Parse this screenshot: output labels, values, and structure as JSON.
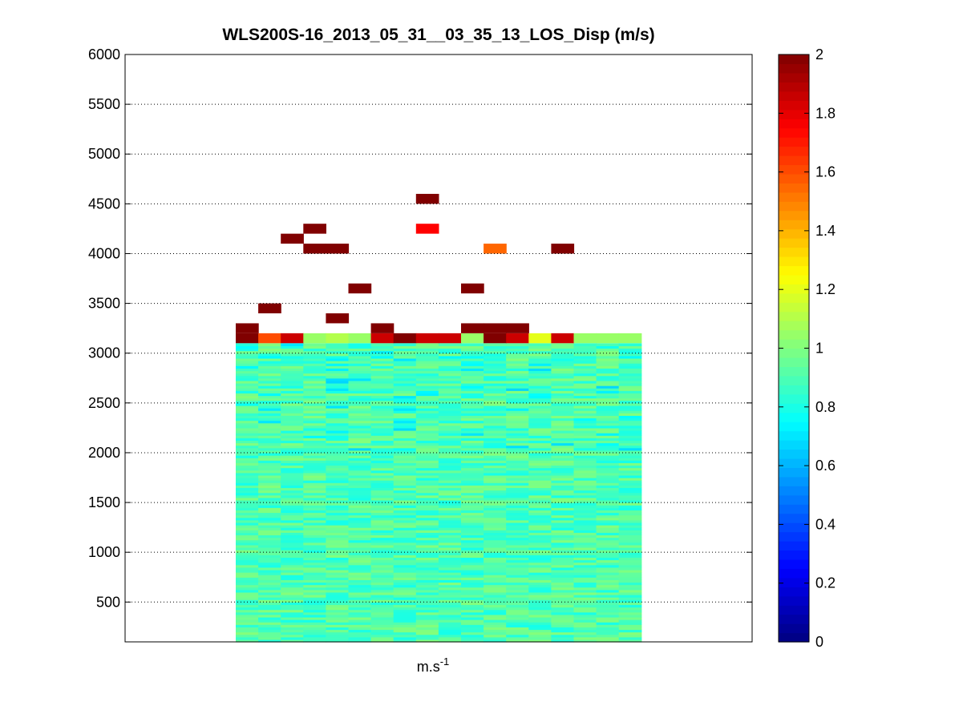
{
  "chart_data": {
    "type": "heatmap",
    "title": "WLS200S-16_2013_05_31__03_35_13_LOS_Disp (m/s)",
    "xlabel_base": "m.s",
    "xlabel_sup": "-1",
    "ylabel": "",
    "ylim": [
      100,
      6000
    ],
    "yticks": [
      500,
      1000,
      1500,
      2000,
      2500,
      3000,
      3500,
      4000,
      4500,
      5000,
      5500,
      6000
    ],
    "grid": "horizontal dotted",
    "colormap": "jet",
    "clim": [
      0,
      2
    ],
    "colorbar_ticks": [
      0,
      0.2,
      0.4,
      0.6,
      0.8,
      1,
      1.2,
      1.4,
      1.6,
      1.8,
      2
    ],
    "column_count": 18,
    "base_band": {
      "altitude_range": [
        100,
        3100
      ],
      "typical_value": 0.9,
      "value_range": [
        0.65,
        1.1
      ]
    },
    "top_row": {
      "altitude_range": [
        3100,
        3200
      ],
      "values": [
        2.0,
        1.6,
        1.85,
        1.05,
        1.1,
        1.05,
        1.85,
        2.0,
        1.85,
        1.85,
        1.05,
        2.0,
        1.85,
        1.2,
        1.85,
        1.05,
        1.05,
        1.05
      ]
    },
    "cells": [
      {
        "col": 0,
        "y0": 3200,
        "y1": 3300,
        "value": 2.0
      },
      {
        "col": 6,
        "y0": 3200,
        "y1": 3300,
        "value": 2.0
      },
      {
        "col": 10,
        "y0": 3200,
        "y1": 3300,
        "value": 2.0
      },
      {
        "col": 11,
        "y0": 3200,
        "y1": 3300,
        "value": 2.0
      },
      {
        "col": 12,
        "y0": 3200,
        "y1": 3300,
        "value": 2.0
      },
      {
        "col": 4,
        "y0": 3300,
        "y1": 3400,
        "value": 2.0
      },
      {
        "col": 1,
        "y0": 3400,
        "y1": 3500,
        "value": 2.0
      },
      {
        "col": 5,
        "y0": 3600,
        "y1": 3700,
        "value": 2.0
      },
      {
        "col": 10,
        "y0": 3600,
        "y1": 3700,
        "value": 2.0
      },
      {
        "col": 3,
        "y0": 4000,
        "y1": 4100,
        "value": 2.0
      },
      {
        "col": 4,
        "y0": 4000,
        "y1": 4100,
        "value": 2.0
      },
      {
        "col": 11,
        "y0": 4000,
        "y1": 4100,
        "value": 1.55
      },
      {
        "col": 14,
        "y0": 4000,
        "y1": 4100,
        "value": 2.0
      },
      {
        "col": 2,
        "y0": 4100,
        "y1": 4200,
        "value": 2.0
      },
      {
        "col": 3,
        "y0": 4200,
        "y1": 4300,
        "value": 2.0
      },
      {
        "col": 8,
        "y0": 4200,
        "y1": 4300,
        "value": 1.75
      },
      {
        "col": 8,
        "y0": 4500,
        "y1": 4600,
        "value": 2.0
      }
    ]
  }
}
